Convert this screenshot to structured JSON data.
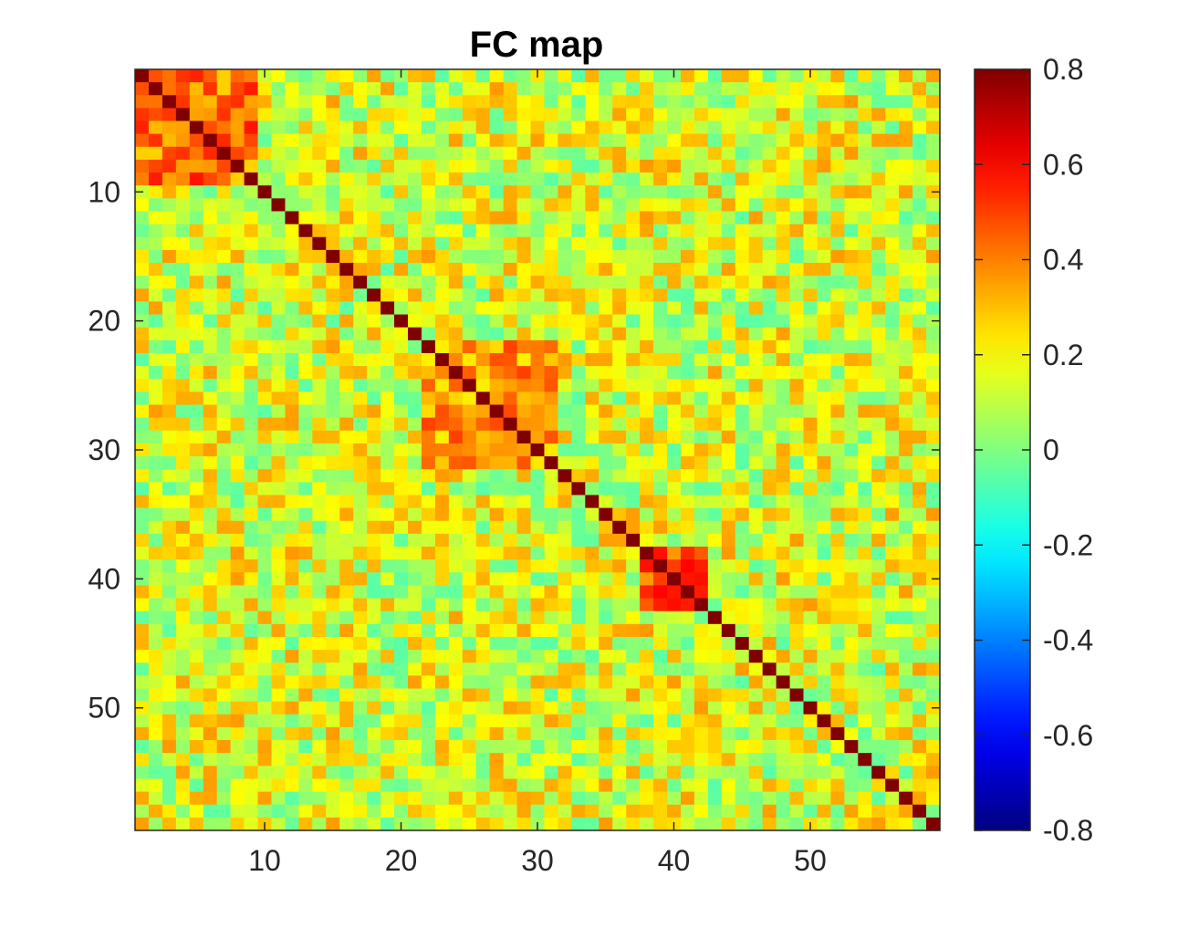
{
  "chart_data": {
    "type": "heatmap",
    "title": "FC map",
    "size": 59,
    "xlabel": "",
    "ylabel": "",
    "xlim": [
      0.5,
      59.5
    ],
    "ylim": [
      0.5,
      59.5
    ],
    "y_reversed": true,
    "xticks": [
      10,
      20,
      30,
      40,
      50
    ],
    "yticks": [
      10,
      20,
      30,
      40,
      50
    ],
    "clim": [
      -0.8,
      0.8
    ],
    "colormap": "jet",
    "colorbar": {
      "location": "right",
      "ticks": [
        "0.8",
        "0.6",
        "0.4",
        "0.2",
        "0",
        "-0.2",
        "-0.4",
        "-0.6",
        "-0.8"
      ]
    },
    "diagonal_value": 1.0,
    "highlighted_blocks": [
      {
        "from": 1,
        "to": 9,
        "mean": 0.42
      },
      {
        "from": 22,
        "to": 31,
        "mean": 0.36
      },
      {
        "from": 38,
        "to": 42,
        "mean": 0.48
      }
    ],
    "off_diagonal_mean": 0.15,
    "grid": false
  }
}
